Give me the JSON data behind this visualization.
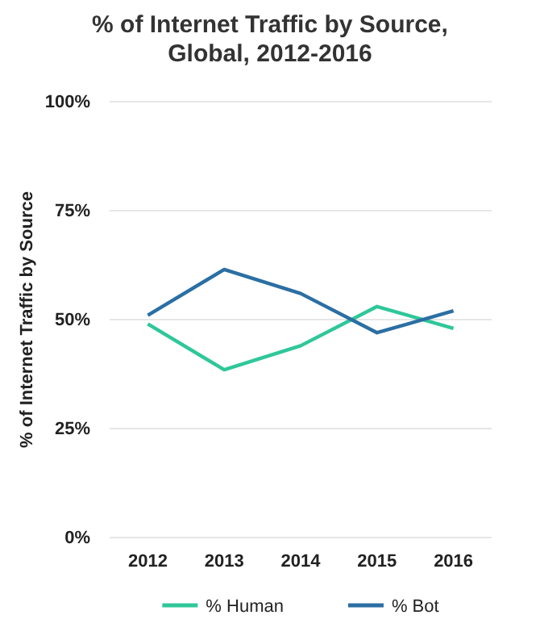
{
  "chart_data": {
    "type": "line",
    "title": "% of Internet Traffic by Source, Global, 2012-2016",
    "ylabel": "% of Internet Traffic by Source",
    "categories": [
      "2012",
      "2013",
      "2014",
      "2015",
      "2016"
    ],
    "series": [
      {
        "name": "% Human",
        "color": "#2fc79a",
        "values": [
          49,
          38.5,
          44,
          53,
          48
        ]
      },
      {
        "name": "% Bot",
        "color": "#2b6fa3",
        "values": [
          51,
          61.5,
          56,
          47,
          52
        ]
      }
    ],
    "ylim": [
      0,
      100
    ],
    "yticks": [
      {
        "value": 0,
        "label": "0%"
      },
      {
        "value": 25,
        "label": "25%"
      },
      {
        "value": 50,
        "label": "50%"
      },
      {
        "value": 75,
        "label": "75%"
      },
      {
        "value": 100,
        "label": "100%"
      }
    ],
    "grid": "y",
    "legend": "bottom",
    "marker": "none",
    "line_style": "solid"
  }
}
